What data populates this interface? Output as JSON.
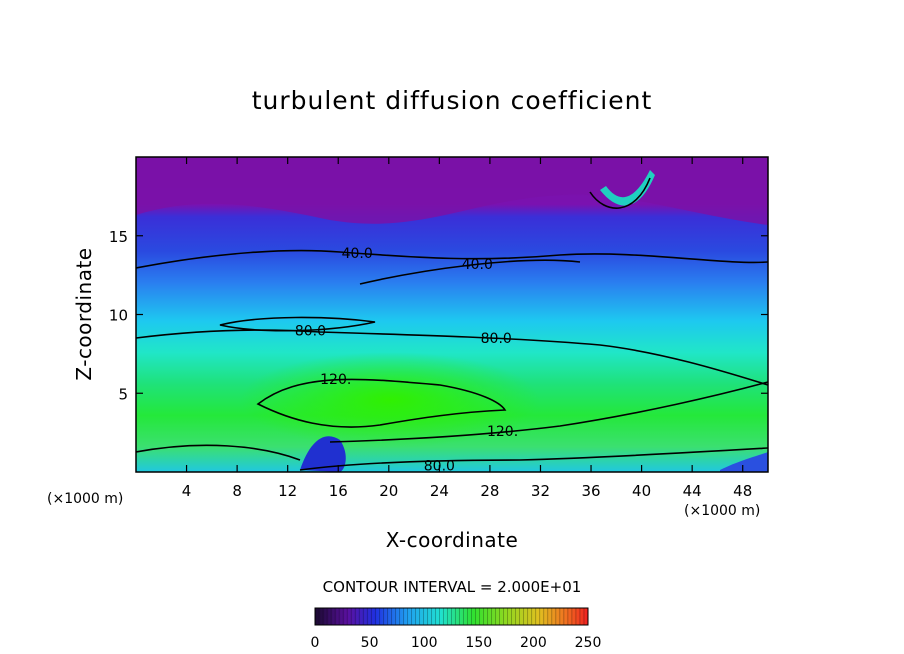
{
  "chart_data": {
    "type": "heatmap",
    "title": "turbulent diffusion coefficient",
    "xlabel": "X-coordinate",
    "ylabel": "Z-coordinate",
    "x_unit_left": "(×1000 m)",
    "x_unit_right": "(×1000 m)",
    "xlim": [
      0,
      50
    ],
    "ylim": [
      0,
      20
    ],
    "x_ticks": [
      4,
      8,
      12,
      16,
      20,
      24,
      28,
      32,
      36,
      40,
      44,
      48
    ],
    "y_ticks": [
      5,
      10,
      15
    ],
    "contour_interval_text": "CONTOUR INTERVAL = 2.000E+01",
    "contour_labels": [
      {
        "text": "40.0",
        "x": 17.5,
        "z": 13.9
      },
      {
        "text": "40.0",
        "x": 27.0,
        "z": 13.2
      },
      {
        "text": "80.0",
        "x": 13.8,
        "z": 9.0
      },
      {
        "text": "80.0",
        "x": 28.5,
        "z": 8.5
      },
      {
        "text": "120.",
        "x": 15.8,
        "z": 5.9
      },
      {
        "text": "120.",
        "x": 29.0,
        "z": 2.6
      },
      {
        "text": "80.0",
        "x": 24.0,
        "z": 0.4
      }
    ],
    "colorbar": {
      "range": [
        0,
        250
      ],
      "ticks": [
        0,
        50,
        100,
        150,
        200,
        250
      ]
    },
    "colors": {
      "top": "#7a0fa0",
      "blue": "#2a34d2",
      "cyan": "#1ed8e6",
      "green": "#1fe21f",
      "contour": "#000000"
    }
  }
}
